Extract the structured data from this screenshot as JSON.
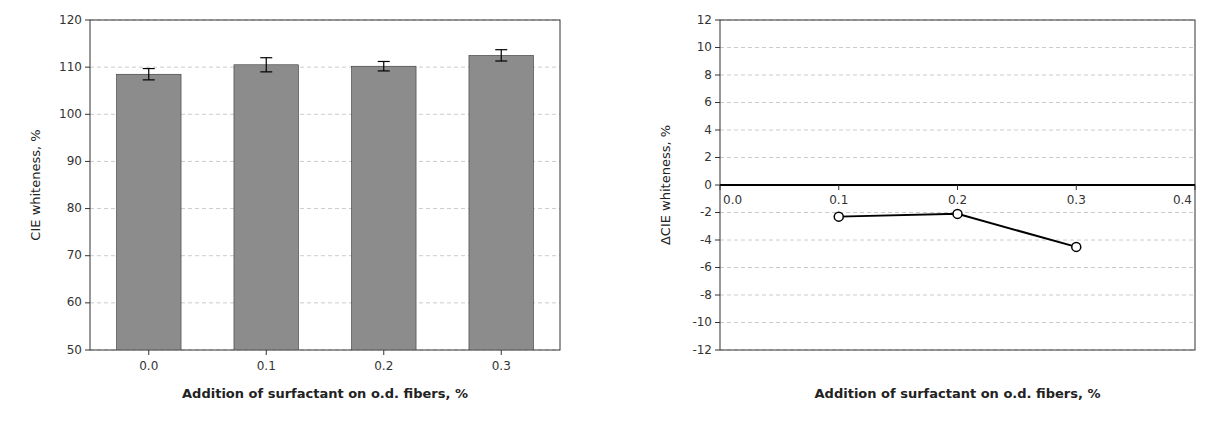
{
  "chart_data": [
    {
      "type": "bar",
      "categories": [
        "0.0",
        "0.1",
        "0.2",
        "0.3"
      ],
      "values": [
        108.5,
        110.5,
        110.2,
        112.5
      ],
      "errors": [
        1.2,
        1.5,
        1.0,
        1.2
      ],
      "color": "#8c8c8c",
      "xlabel": "Addition  of surfactant on o.d. fibers, %",
      "ylabel": "CIE whiteness, %",
      "ylim": [
        50,
        120
      ],
      "yticks": [
        50,
        60,
        70,
        80,
        90,
        100,
        110,
        120
      ],
      "grid": true
    },
    {
      "type": "line",
      "x": [
        0.1,
        0.2,
        0.3
      ],
      "values": [
        -2.3,
        -2.1,
        -4.5
      ],
      "color": "#000000",
      "marker": "circle",
      "xlabel": "Addition  of surfactant on o.d. fibers, %",
      "ylabel": "ΔCIE whiteness, %",
      "xlim": [
        0.0,
        0.4
      ],
      "xticks": [
        {
          "value": 0.0,
          "label": "0.0"
        },
        0.1,
        0.2,
        0.3,
        0.4
      ],
      "ylim": [
        -12,
        12
      ],
      "yticks": [
        -12,
        -10,
        -8,
        -6,
        -4,
        -2,
        0,
        2,
        4,
        6,
        8,
        10,
        12
      ],
      "grid": true
    }
  ]
}
